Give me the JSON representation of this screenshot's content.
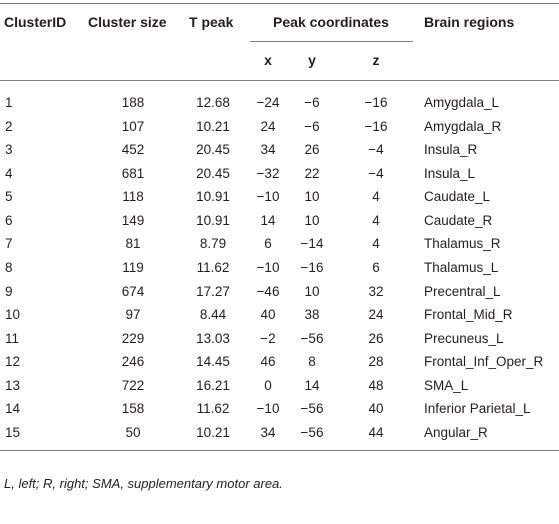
{
  "header": {
    "columns": [
      "ClusterID",
      "Cluster size",
      "T peak",
      "Peak coordinates",
      "Brain regions"
    ],
    "subcolumns": [
      "x",
      "y",
      "z"
    ]
  },
  "table": {
    "rows": [
      [
        "1",
        "188",
        "12.68",
        "−24",
        "−6",
        "−16",
        "Amygdala_L"
      ],
      [
        "2",
        "107",
        "10.21",
        "24",
        "−6",
        "−16",
        "Amygdala_R"
      ],
      [
        "3",
        "452",
        "20.45",
        "34",
        "26",
        "−4",
        "Insula_R"
      ],
      [
        "4",
        "681",
        "20.45",
        "−32",
        "22",
        "−4",
        "Insula_L"
      ],
      [
        "5",
        "118",
        "10.91",
        "−10",
        "10",
        "4",
        "Caudate_L"
      ],
      [
        "6",
        "149",
        "10.91",
        "14",
        "10",
        "4",
        "Caudate_R"
      ],
      [
        "7",
        "81",
        "8.79",
        "6",
        "−14",
        "4",
        "Thalamus_R"
      ],
      [
        "8",
        "119",
        "11.62",
        "−10",
        "−16",
        "6",
        "Thalamus_L"
      ],
      [
        "9",
        "674",
        "17.27",
        "−46",
        "10",
        "32",
        "Precentral_L"
      ],
      [
        "10",
        "97",
        "8.44",
        "40",
        "38",
        "24",
        "Frontal_Mid_R"
      ],
      [
        "11",
        "229",
        "13.03",
        "−2",
        "−56",
        "26",
        "Precuneus_L"
      ],
      [
        "12",
        "246",
        "14.45",
        "46",
        "8",
        "28",
        "Frontal_Inf_Oper_R"
      ],
      [
        "13",
        "722",
        "16.21",
        "0",
        "14",
        "48",
        "SMA_L"
      ],
      [
        "14",
        "158",
        "11.62",
        "−10",
        "−56",
        "40",
        "Inferior Parietal_L"
      ],
      [
        "15",
        "50",
        "10.21",
        "34",
        "−56",
        "44",
        "Angular_R"
      ]
    ]
  },
  "footnote": "L, left; R, right; SMA, supplementary motor area."
}
